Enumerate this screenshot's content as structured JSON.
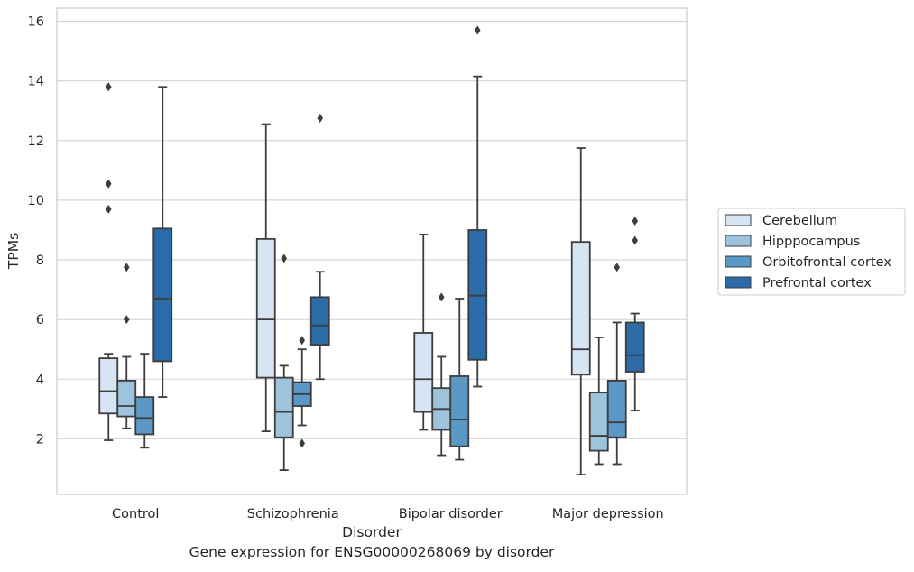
{
  "chart_data": {
    "type": "box",
    "xlabel": "Disorder",
    "ylabel": "TPMs",
    "caption": "Gene expression for ENSG00000268069 by disorder",
    "categories": [
      "Control",
      "Schizophrenia",
      "Bipolar disorder",
      "Major depression"
    ],
    "ylim": [
      0.1,
      16.4
    ],
    "yticks": [
      2,
      4,
      6,
      8,
      10,
      12,
      14,
      16
    ],
    "grid": true,
    "legend_position": "right",
    "series": [
      {
        "name": "Cerebellum",
        "color": "#d6e4f3",
        "boxes": [
          {
            "whislo": 1.95,
            "q1": 2.85,
            "med": 3.6,
            "q3": 4.7,
            "whishi": 4.85,
            "fliers": [
              13.8,
              10.55,
              9.7
            ]
          },
          {
            "whislo": 2.25,
            "q1": 4.05,
            "med": 6.0,
            "q3": 8.7,
            "whishi": 12.55,
            "fliers": []
          },
          {
            "whislo": 2.3,
            "q1": 2.9,
            "med": 4.0,
            "q3": 5.55,
            "whishi": 8.85,
            "fliers": []
          },
          {
            "whislo": 0.8,
            "q1": 4.15,
            "med": 5.0,
            "q3": 8.6,
            "whishi": 11.75,
            "fliers": []
          }
        ]
      },
      {
        "name": "Hipppocampus",
        "color": "#9dc3dd",
        "boxes": [
          {
            "whislo": 2.35,
            "q1": 2.75,
            "med": 3.1,
            "q3": 3.95,
            "whishi": 4.75,
            "fliers": [
              7.75,
              6.0
            ]
          },
          {
            "whislo": 0.95,
            "q1": 2.05,
            "med": 2.9,
            "q3": 4.05,
            "whishi": 4.45,
            "fliers": [
              8.05
            ]
          },
          {
            "whislo": 1.45,
            "q1": 2.3,
            "med": 3.0,
            "q3": 3.7,
            "whishi": 4.75,
            "fliers": [
              6.75
            ]
          },
          {
            "whislo": 1.15,
            "q1": 1.6,
            "med": 2.1,
            "q3": 3.55,
            "whishi": 5.4,
            "fliers": []
          }
        ]
      },
      {
        "name": "Orbitofrontal cortex",
        "color": "#5a99c6",
        "boxes": [
          {
            "whislo": 1.7,
            "q1": 2.15,
            "med": 2.7,
            "q3": 3.4,
            "whishi": 4.85,
            "fliers": []
          },
          {
            "whislo": 2.45,
            "q1": 3.1,
            "med": 3.5,
            "q3": 3.9,
            "whishi": 5.0,
            "fliers": [
              5.3,
              1.85
            ]
          },
          {
            "whislo": 1.3,
            "q1": 1.75,
            "med": 2.65,
            "q3": 4.1,
            "whishi": 6.7,
            "fliers": []
          },
          {
            "whislo": 1.15,
            "q1": 2.05,
            "med": 2.55,
            "q3": 3.95,
            "whishi": 5.9,
            "fliers": [
              7.75
            ]
          }
        ]
      },
      {
        "name": "Prefrontal cortex",
        "color": "#2b6ba8",
        "boxes": [
          {
            "whislo": 3.4,
            "q1": 4.6,
            "med": 6.7,
            "q3": 9.05,
            "whishi": 13.8,
            "fliers": []
          },
          {
            "whislo": 4.0,
            "q1": 5.15,
            "med": 5.8,
            "q3": 6.75,
            "whishi": 7.6,
            "fliers": [
              12.75
            ]
          },
          {
            "whislo": 3.75,
            "q1": 4.65,
            "med": 6.8,
            "q3": 9.0,
            "whishi": 14.15,
            "fliers": [
              15.7
            ]
          },
          {
            "whislo": 2.95,
            "q1": 4.25,
            "med": 4.8,
            "q3": 5.9,
            "whishi": 6.2,
            "fliers": [
              9.3,
              8.65
            ]
          }
        ]
      }
    ]
  }
}
